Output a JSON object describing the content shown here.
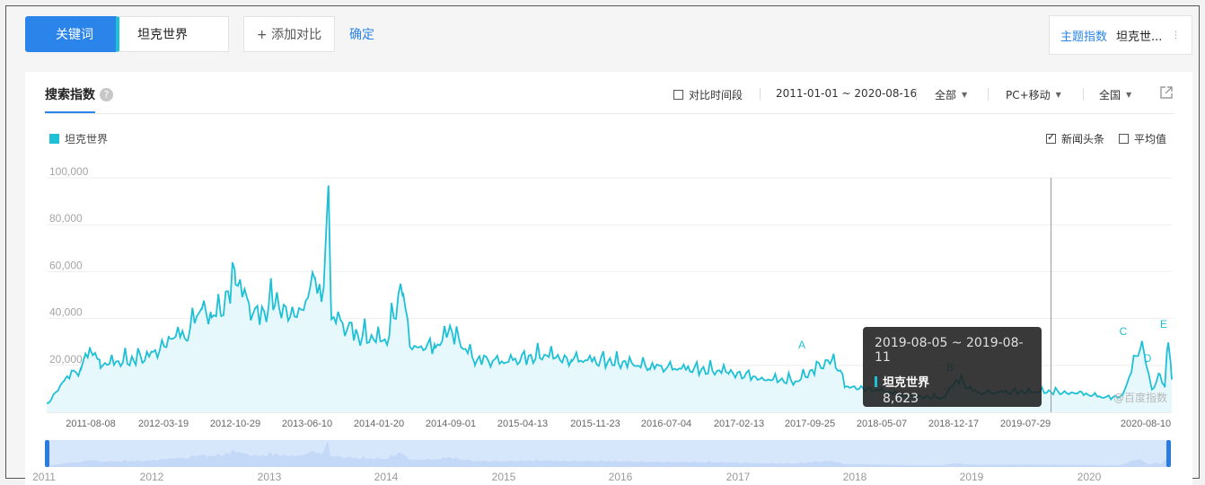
{
  "toolbar": {
    "keyword_btn": "关键词",
    "keyword_value": "坦克世界",
    "add_compare": "+ 添加对比",
    "confirm": "确定",
    "topic_label": "主题指数",
    "topic_value": "坦克世...",
    "topic_more": "⋮"
  },
  "panel": {
    "title": "搜索指数",
    "help": "?",
    "compare_period": "对比时间段",
    "date_range": "2011-01-01 ~ 2020-08-16",
    "source": "全部",
    "device": "PC+移动",
    "region": "全国",
    "news_headline": "新闻头条",
    "average": "平均值"
  },
  "tooltip": {
    "date": "2019-08-05 ~ 2019-08-11",
    "series": "坦克世界",
    "value": "8,623"
  },
  "watermark": "@百度指数",
  "colors": {
    "accent": "#2a84e9",
    "series": "#1ec0d6"
  },
  "chart_data": {
    "type": "area",
    "series": [
      {
        "name": "坦克世界"
      }
    ],
    "ylim": [
      0,
      100000
    ],
    "y_ticks": [
      "100,000",
      "80,000",
      "60,000",
      "40,000",
      "20,000"
    ],
    "x_ticks": [
      "2011-08-08",
      "2012-03-19",
      "2012-10-29",
      "2013-06-10",
      "2014-01-20",
      "2014-09-01",
      "2015-04-13",
      "2015-11-23",
      "2016-07-04",
      "2017-02-13",
      "2017-09-25",
      "2018-05-07",
      "2018-12-17",
      "2019-07-29",
      "2020-08-10"
    ],
    "nav_years": [
      "2011",
      "2012",
      "2013",
      "2014",
      "2015",
      "2016",
      "2017",
      "2018",
      "2019",
      "2020"
    ],
    "annotations": [
      "A",
      "B",
      "C",
      "D",
      "E"
    ],
    "points": [
      [
        "2011-01-03",
        3000
      ],
      [
        "2011-03-01",
        14000
      ],
      [
        "2011-04-20",
        18000
      ],
      [
        "2011-05-20",
        27000
      ],
      [
        "2011-06-20",
        20000
      ],
      [
        "2011-08-08",
        21000
      ],
      [
        "2011-10-01",
        22000
      ],
      [
        "2011-12-01",
        24000
      ],
      [
        "2012-01-20",
        31000
      ],
      [
        "2012-03-19",
        33000
      ],
      [
        "2012-05-01",
        45000
      ],
      [
        "2012-06-01",
        40000
      ],
      [
        "2012-07-01",
        43000
      ],
      [
        "2012-08-15",
        57000
      ],
      [
        "2012-10-01",
        42000
      ],
      [
        "2012-10-29",
        40000
      ],
      [
        "2012-12-15",
        47000
      ],
      [
        "2013-02-01",
        41000
      ],
      [
        "2013-03-15",
        44000
      ],
      [
        "2013-04-20",
        60000
      ],
      [
        "2013-05-10",
        46000
      ],
      [
        "2013-06-01",
        89000
      ],
      [
        "2013-06-10",
        40000
      ],
      [
        "2013-09-01",
        32000
      ],
      [
        "2013-12-01",
        30000
      ],
      [
        "2014-01-20",
        55000
      ],
      [
        "2014-02-10",
        28000
      ],
      [
        "2014-05-01",
        27000
      ],
      [
        "2014-06-15",
        34000
      ],
      [
        "2014-09-01",
        22000
      ],
      [
        "2014-12-01",
        21000
      ],
      [
        "2015-04-13",
        24000
      ],
      [
        "2015-07-01",
        22000
      ],
      [
        "2015-11-23",
        21000
      ],
      [
        "2016-03-01",
        19000
      ],
      [
        "2016-07-04",
        18000
      ],
      [
        "2016-11-01",
        17000
      ],
      [
        "2017-02-13",
        14000
      ],
      [
        "2017-06-01",
        13000
      ],
      [
        "2017-09-25",
        23000
      ],
      [
        "2017-11-01",
        11000
      ],
      [
        "2018-02-01",
        9500
      ],
      [
        "2018-05-07",
        7000
      ],
      [
        "2018-09-01",
        6000
      ],
      [
        "2018-10-15",
        14000
      ],
      [
        "2018-12-17",
        8000
      ],
      [
        "2019-04-01",
        8500
      ],
      [
        "2019-07-29",
        8623
      ],
      [
        "2019-11-01",
        8000
      ],
      [
        "2020-02-01",
        6000
      ],
      [
        "2020-03-15",
        7000
      ],
      [
        "2020-05-15",
        30000
      ],
      [
        "2020-06-15",
        9000
      ],
      [
        "2020-07-10",
        17000
      ],
      [
        "2020-07-25",
        10000
      ],
      [
        "2020-08-05",
        33000
      ],
      [
        "2020-08-16",
        14000
      ]
    ]
  }
}
